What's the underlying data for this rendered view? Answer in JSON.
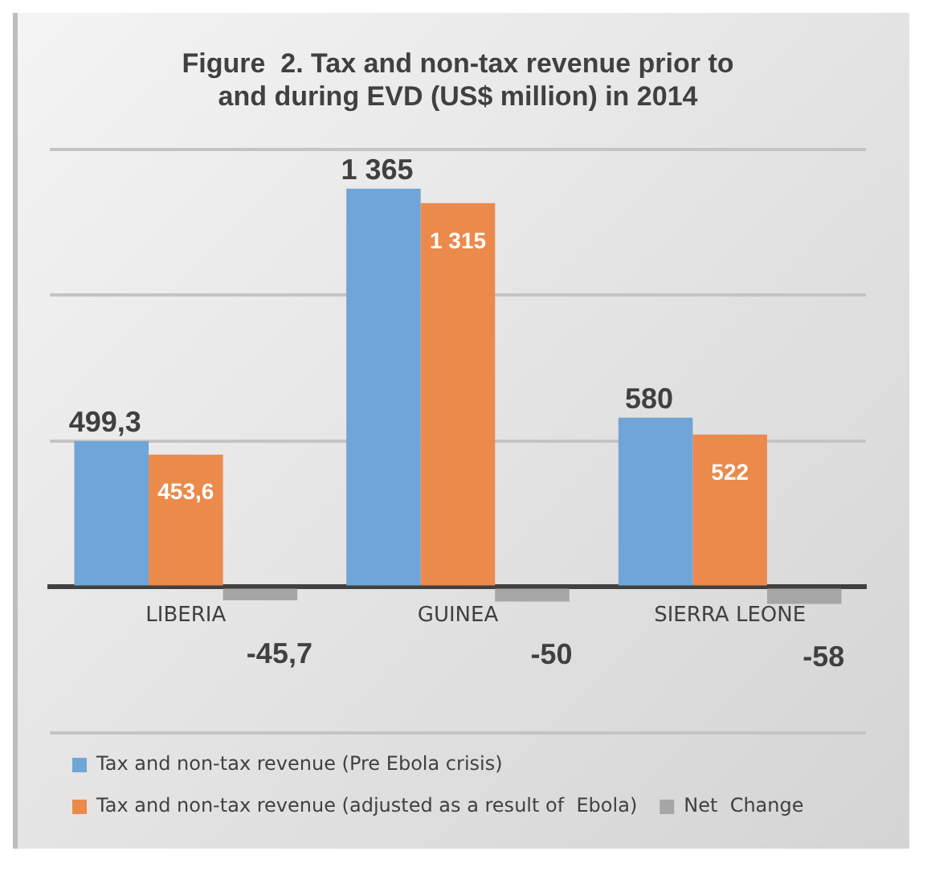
{
  "chart_data": {
    "type": "bar",
    "title": [
      "Figure  2. Tax and non-tax revenue prior to",
      "and during EVD (US$ million) in 2014"
    ],
    "categories": [
      "LIBERIA",
      "GUINEA",
      "SIERRA LEONE"
    ],
    "series": [
      {
        "name": "Tax and non-tax revenue (Pre Ebola crisis)",
        "color": "#6fa5d8",
        "values": [
          499.3,
          1365,
          580
        ],
        "value_labels": [
          "499,3",
          "1 365",
          "580"
        ]
      },
      {
        "name": "Tax and non-tax revenue (adjusted as a result of  Ebola)",
        "color": "#eb8a4b",
        "values": [
          453.6,
          1315,
          522
        ],
        "value_labels": [
          "453,6",
          "1 315",
          "522"
        ]
      },
      {
        "name": "Net  Change",
        "color": "#a6a6a6",
        "values": [
          -45.7,
          -50,
          -58
        ],
        "value_labels": [
          "-45,7",
          "-50",
          "-58"
        ]
      }
    ],
    "ylim": [
      -500,
      1500
    ],
    "yticks": [
      {
        "value": -500,
        "label": null
      },
      {
        "value": 0,
        "label": null
      },
      {
        "value": 500,
        "label": null
      },
      {
        "value": 1000,
        "label": null
      },
      {
        "value": 1500,
        "label": null
      }
    ],
    "tick_labels": "x",
    "grid": "y",
    "legend": "bottom"
  }
}
